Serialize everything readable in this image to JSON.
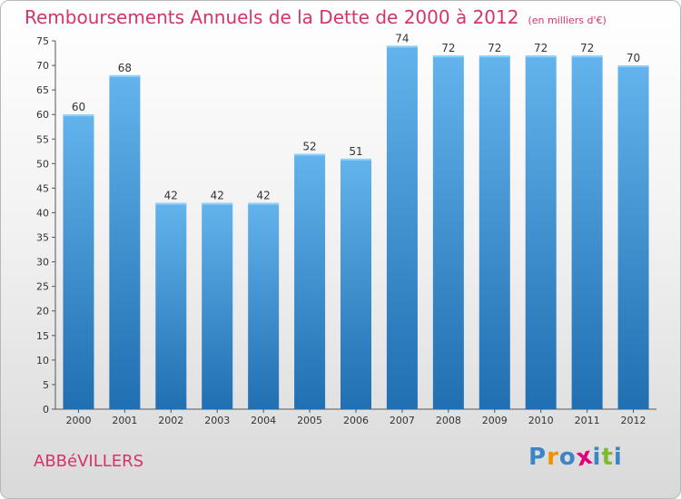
{
  "title": "Remboursements Annuels de la Dette de 2000 à 2012",
  "unit": "(en milliers d'€)",
  "city": "ABBéVILLERS",
  "brand": "Proxiti",
  "brand_colors": [
    "#3d86c6",
    "#f39200",
    "#3d86c6",
    "#e2007a",
    "#3d86c6",
    "#7fbb2a",
    "#3d86c6"
  ],
  "colors": {
    "title": "#d6336c",
    "bar": "#3b8fd4",
    "bar_light": "#63b3ec",
    "bar_dark": "#1f6fb2"
  },
  "chart_data": {
    "type": "bar",
    "title": "Remboursements Annuels de la Dette de 2000 à 2012",
    "xlabel": "",
    "ylabel": "",
    "categories": [
      "2000",
      "2001",
      "2002",
      "2003",
      "2004",
      "2005",
      "2006",
      "2007",
      "2008",
      "2009",
      "2010",
      "2011",
      "2012"
    ],
    "values": [
      60,
      68,
      42,
      42,
      42,
      52,
      51,
      74,
      72,
      72,
      72,
      72,
      70
    ],
    "ylim": [
      0,
      75
    ],
    "yticks": [
      0,
      5,
      10,
      15,
      20,
      25,
      30,
      35,
      40,
      45,
      50,
      55,
      60,
      65,
      70,
      75
    ],
    "grid": false,
    "data_labels": true
  }
}
